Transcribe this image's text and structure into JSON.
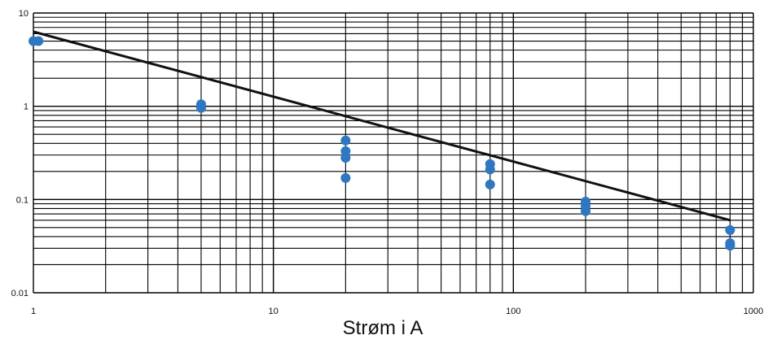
{
  "chart_data": {
    "type": "scatter",
    "title": "",
    "xlabel": "Strøm i A",
    "ylabel": "",
    "x_scale": "log",
    "y_scale": "log",
    "xlim": [
      1,
      1000
    ],
    "ylim": [
      0.01,
      10
    ],
    "grid": true,
    "x_tick_labels": [
      "1",
      "10",
      "100",
      "1000"
    ],
    "y_tick_labels": [
      "10",
      "1",
      "0.1",
      "0.01"
    ],
    "series": [
      {
        "kind": "points",
        "color": "#2f77c0",
        "points": [
          {
            "x": 1.0,
            "y": 5.0
          },
          {
            "x": 1.05,
            "y": 5.0
          },
          {
            "x": 5.0,
            "y": 1.05
          },
          {
            "x": 5.0,
            "y": 0.96
          },
          {
            "x": 20,
            "y": 0.43
          },
          {
            "x": 20,
            "y": 0.33
          },
          {
            "x": 20,
            "y": 0.28
          },
          {
            "x": 20,
            "y": 0.17
          },
          {
            "x": 80,
            "y": 0.24
          },
          {
            "x": 80,
            "y": 0.21
          },
          {
            "x": 80,
            "y": 0.145
          },
          {
            "x": 200,
            "y": 0.095
          },
          {
            "x": 200,
            "y": 0.085
          },
          {
            "x": 200,
            "y": 0.075
          },
          {
            "x": 800,
            "y": 0.047
          },
          {
            "x": 800,
            "y": 0.034
          },
          {
            "x": 800,
            "y": 0.032
          }
        ]
      },
      {
        "kind": "line",
        "color": "#111111",
        "points": [
          {
            "x": 1,
            "y": 6.3
          },
          {
            "x": 800,
            "y": 0.06
          }
        ]
      }
    ]
  }
}
